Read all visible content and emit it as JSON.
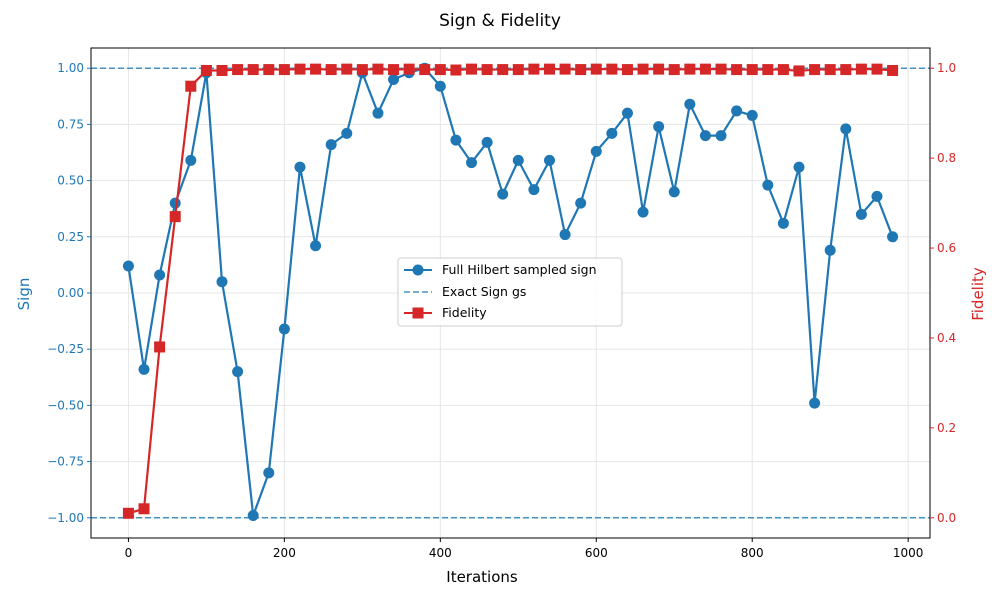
{
  "chart_data": {
    "type": "line",
    "title": "Sign & Fidelity",
    "xlabel": "Iterations",
    "ylabel_left": "Sign",
    "ylabel_right": "Fidelity",
    "xlim": [
      -48,
      1028
    ],
    "ylim_left": [
      -1.09,
      1.09
    ],
    "ylim_right": [
      -0.045,
      1.045
    ],
    "xticks": [
      0,
      200,
      400,
      600,
      800,
      1000
    ],
    "yticks_left": [
      -1.0,
      -0.75,
      -0.5,
      -0.25,
      0.0,
      0.25,
      0.5,
      0.75,
      1.0
    ],
    "yticks_left_labels": [
      "−1.00",
      "−0.75",
      "−0.50",
      "−0.25",
      "0.00",
      "0.25",
      "0.50",
      "0.75",
      "1.00"
    ],
    "yticks_right": [
      0.0,
      0.2,
      0.4,
      0.6,
      0.8,
      1.0
    ],
    "yticks_right_labels": [
      "0.0",
      "0.2",
      "0.4",
      "0.6",
      "0.8",
      "1.0"
    ],
    "grid": true,
    "legend_position": "center",
    "colors": {
      "sign": "#1f77b4",
      "exact": "#1f77b4",
      "fidelity": "#d62728",
      "left_axis": "#1f77b4",
      "right_axis": "#d62728"
    },
    "x": [
      0,
      20,
      40,
      60,
      80,
      100,
      120,
      140,
      160,
      180,
      200,
      220,
      240,
      260,
      280,
      300,
      320,
      340,
      360,
      380,
      400,
      420,
      440,
      460,
      480,
      500,
      520,
      540,
      560,
      580,
      600,
      620,
      640,
      660,
      680,
      700,
      720,
      740,
      760,
      780,
      800,
      820,
      840,
      860,
      880,
      900,
      920,
      940,
      960,
      980
    ],
    "series": [
      {
        "name": "Full Hilbert sampled sign",
        "axis": "left",
        "values": [
          0.12,
          -0.34,
          0.08,
          0.4,
          0.59,
          0.98,
          0.05,
          -0.35,
          -0.99,
          -0.8,
          -0.16,
          0.56,
          0.21,
          0.66,
          0.71,
          0.98,
          0.8,
          0.95,
          0.98,
          1.0,
          0.92,
          0.68,
          0.58,
          0.67,
          0.44,
          0.59,
          0.46,
          0.59,
          0.26,
          0.4,
          0.63,
          0.71,
          0.8,
          0.36,
          0.74,
          0.45,
          0.84,
          0.7,
          0.7,
          0.81,
          0.79,
          0.48,
          0.31,
          0.56,
          -0.49,
          0.19,
          0.73,
          0.35,
          0.43,
          0.25
        ]
      },
      {
        "name": "Fidelity",
        "axis": "right",
        "values": [
          0.01,
          0.02,
          0.38,
          0.67,
          0.96,
          0.995,
          0.995,
          0.997,
          0.997,
          0.997,
          0.997,
          0.998,
          0.998,
          0.997,
          0.998,
          0.997,
          0.998,
          0.997,
          0.998,
          0.997,
          0.997,
          0.996,
          0.998,
          0.997,
          0.997,
          0.997,
          0.998,
          0.998,
          0.998,
          0.997,
          0.998,
          0.998,
          0.997,
          0.998,
          0.998,
          0.997,
          0.998,
          0.998,
          0.998,
          0.997,
          0.997,
          0.997,
          0.997,
          0.994,
          0.997,
          0.997,
          0.997,
          0.998,
          0.998,
          0.995
        ]
      }
    ],
    "reference_lines": {
      "name": "Exact Sign gs",
      "values": [
        1.0,
        -1.0
      ],
      "axis": "left"
    },
    "legend": [
      "Full Hilbert sampled sign",
      "Exact Sign gs",
      "Fidelity"
    ]
  }
}
